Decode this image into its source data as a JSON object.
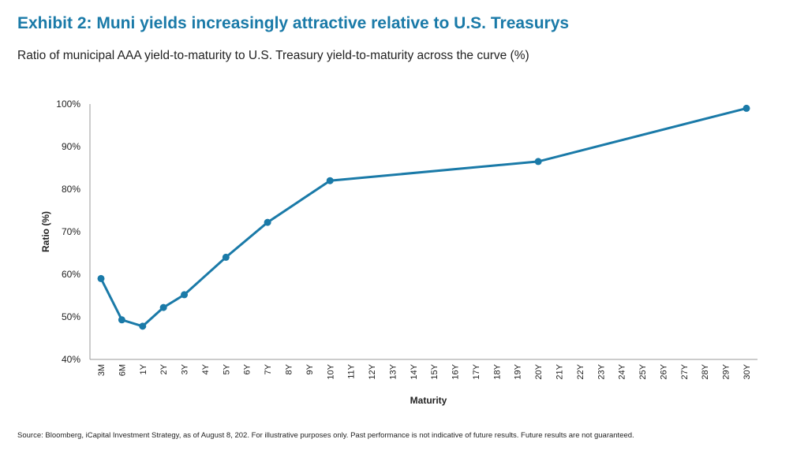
{
  "title": "Exhibit 2: Muni yields increasingly attractive relative to U.S. Treasurys",
  "subtitle": "Ratio of municipal AAA yield-to-maturity to U.S. Treasury yield-to-maturity across the curve (%)",
  "source": "Source: Bloomberg, iCapital Investment Strategy, as of August 8, 202. For illustrative purposes only. Past performance is not indicative of future results. Future results are not guaranteed.",
  "chart_data": {
    "type": "line",
    "xlabel": "Maturity",
    "ylabel": "Ratio (%)",
    "ylim": [
      40,
      100
    ],
    "yticks": [
      "40%",
      "50%",
      "60%",
      "70%",
      "80%",
      "90%",
      "100%"
    ],
    "grid": false,
    "color": "#1a7aa8",
    "categories": [
      "3M",
      "6M",
      "1Y",
      "2Y",
      "3Y",
      "4Y",
      "5Y",
      "6Y",
      "7Y",
      "8Y",
      "9Y",
      "10Y",
      "11Y",
      "12Y",
      "13Y",
      "14Y",
      "15Y",
      "16Y",
      "17Y",
      "18Y",
      "19Y",
      "20Y",
      "21Y",
      "22Y",
      "23Y",
      "24Y",
      "25Y",
      "26Y",
      "27Y",
      "28Y",
      "29Y",
      "30Y"
    ],
    "values": [
      59,
      49.3,
      47.8,
      52.2,
      55.2,
      null,
      64,
      null,
      72.2,
      null,
      null,
      82,
      null,
      null,
      null,
      null,
      null,
      null,
      null,
      null,
      null,
      86.5,
      null,
      null,
      null,
      null,
      null,
      null,
      null,
      null,
      null,
      99
    ]
  }
}
